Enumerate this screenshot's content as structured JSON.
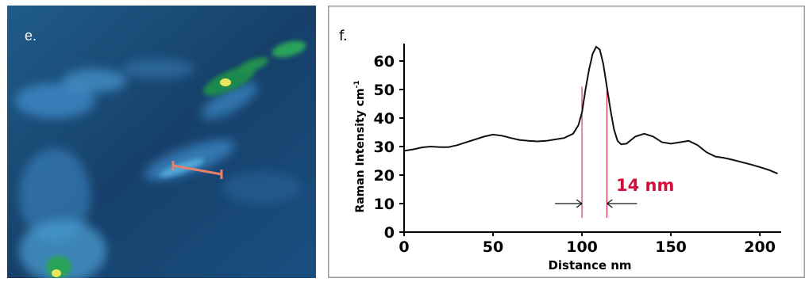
{
  "panel_e": {
    "label": "e."
  },
  "chart_data": {
    "type": "line",
    "panel_label": "f.",
    "title": "",
    "xlabel": "Distance  nm",
    "ylabel": "Raman Intensity cm",
    "ylabel_superscript": "-1",
    "xlim": [
      0,
      212
    ],
    "ylim": [
      0,
      65
    ],
    "xticks": [
      0,
      50,
      100,
      150,
      200
    ],
    "yticks": [
      0,
      10,
      20,
      30,
      40,
      50,
      60
    ],
    "grid": false,
    "annotation": "14 nm",
    "annotation_color": "#d0103a",
    "marker_x": [
      100,
      114
    ],
    "series": [
      {
        "x": [
          0,
          5,
          10,
          15,
          20,
          25,
          30,
          35,
          40,
          45,
          50,
          55,
          60,
          65,
          70,
          75,
          80,
          85,
          90,
          95,
          98,
          100,
          102,
          104,
          106,
          108,
          110,
          112,
          114,
          116,
          118,
          120,
          122,
          125,
          130,
          135,
          140,
          145,
          150,
          155,
          160,
          165,
          170,
          175,
          180,
          185,
          190,
          195,
          200,
          205,
          210
        ],
        "values": [
          28.5,
          29,
          29.7,
          30,
          29.8,
          29.8,
          30.5,
          31.5,
          32.5,
          33.5,
          34.2,
          33.8,
          33,
          32.3,
          32,
          31.8,
          32,
          32.5,
          33,
          34.5,
          37.5,
          42,
          50,
          57,
          62.5,
          65,
          64,
          59,
          51,
          43,
          36,
          32,
          30.8,
          31,
          33.5,
          34.5,
          33.5,
          31.5,
          31,
          31.5,
          32,
          30.5,
          28,
          26.5,
          26,
          25.3,
          24.5,
          23.7,
          22.8,
          21.8,
          20.5
        ]
      }
    ]
  }
}
